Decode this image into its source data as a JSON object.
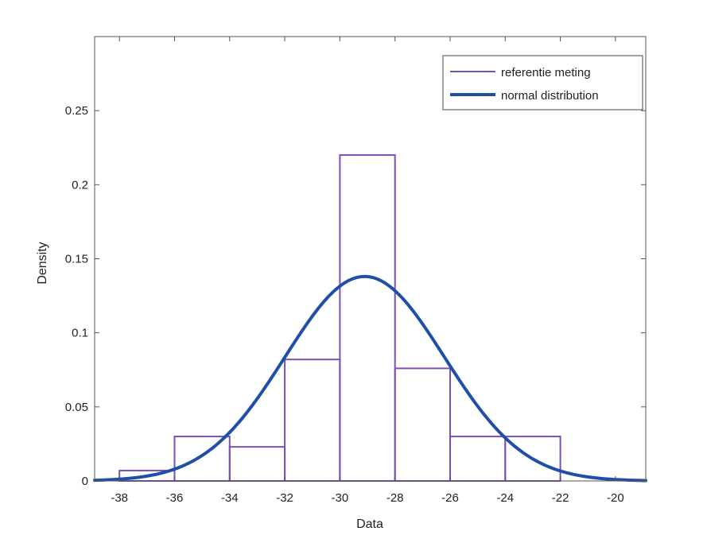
{
  "chart_data": {
    "type": "bar",
    "xlabel": "Data",
    "ylabel": "Density",
    "xlim": [
      -38.9,
      -18.9
    ],
    "ylim": [
      0,
      0.3
    ],
    "grid": false,
    "legend_position": "top-right",
    "x_ticks": [
      -38,
      -36,
      -34,
      -32,
      -30,
      -28,
      -26,
      -24,
      -22,
      -20
    ],
    "x_tick_labels": [
      "-38",
      "-36",
      "-34",
      "-32",
      "-30",
      "-28",
      "-26",
      "-24",
      "-22",
      "-20"
    ],
    "y_ticks": [
      0,
      0.05,
      0.1,
      0.15,
      0.2,
      0.25
    ],
    "y_tick_labels": [
      "0",
      "0.05",
      "0.1",
      "0.15",
      "0.2",
      "0.25"
    ],
    "series": [
      {
        "name": "referentie meting",
        "kind": "histogram",
        "color": "#7b4fb5",
        "bins": [
          {
            "x0": -38,
            "x1": -36,
            "value": 0.007
          },
          {
            "x0": -36,
            "x1": -34,
            "value": 0.03
          },
          {
            "x0": -34,
            "x1": -32,
            "value": 0.023
          },
          {
            "x0": -32,
            "x1": -30,
            "value": 0.082
          },
          {
            "x0": -30,
            "x1": -28,
            "value": 0.22
          },
          {
            "x0": -28,
            "x1": -26,
            "value": 0.076
          },
          {
            "x0": -26,
            "x1": -24,
            "value": 0.03
          },
          {
            "x0": -24,
            "x1": -22,
            "value": 0.03
          }
        ]
      },
      {
        "name": "normal distribution",
        "kind": "normal-pdf",
        "color": "#1f4fa8",
        "mean": -29.1,
        "std": 2.89
      }
    ]
  }
}
